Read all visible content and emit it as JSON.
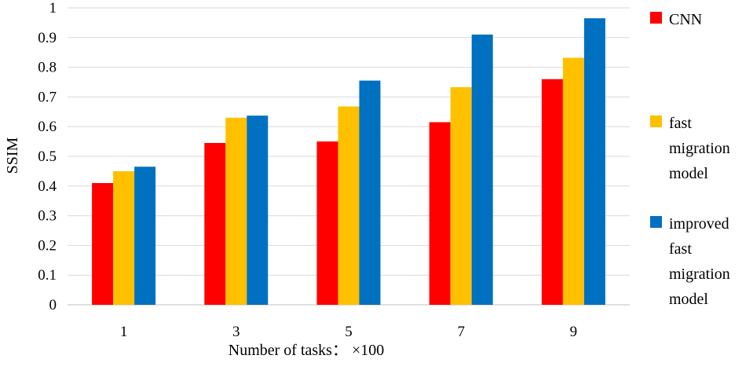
{
  "chart_data": {
    "type": "bar",
    "title": "",
    "xlabel": "Number of tasks： ×100",
    "ylabel": "SSIM",
    "categories": [
      "1",
      "3",
      "5",
      "7",
      "9"
    ],
    "ylim": [
      0,
      1
    ],
    "yticks": [
      "0",
      "0.1",
      "0.2",
      "0.3",
      "0.4",
      "0.5",
      "0.6",
      "0.7",
      "0.8",
      "0.9",
      "1"
    ],
    "grid": true,
    "legend_position": "right",
    "series": [
      {
        "name": "CNN",
        "color": "#ff0000",
        "values": [
          0.41,
          0.545,
          0.55,
          0.615,
          0.76
        ]
      },
      {
        "name": "fast migration model",
        "legend_lines": [
          "fast",
          "migration",
          "model"
        ],
        "color": "#ffc000",
        "values": [
          0.45,
          0.63,
          0.668,
          0.733,
          0.832
        ]
      },
      {
        "name": "improved fast migration model",
        "legend_lines": [
          "improved",
          "fast",
          "migration",
          "model"
        ],
        "color": "#0070c0",
        "values": [
          0.465,
          0.637,
          0.755,
          0.91,
          0.965
        ]
      }
    ]
  }
}
